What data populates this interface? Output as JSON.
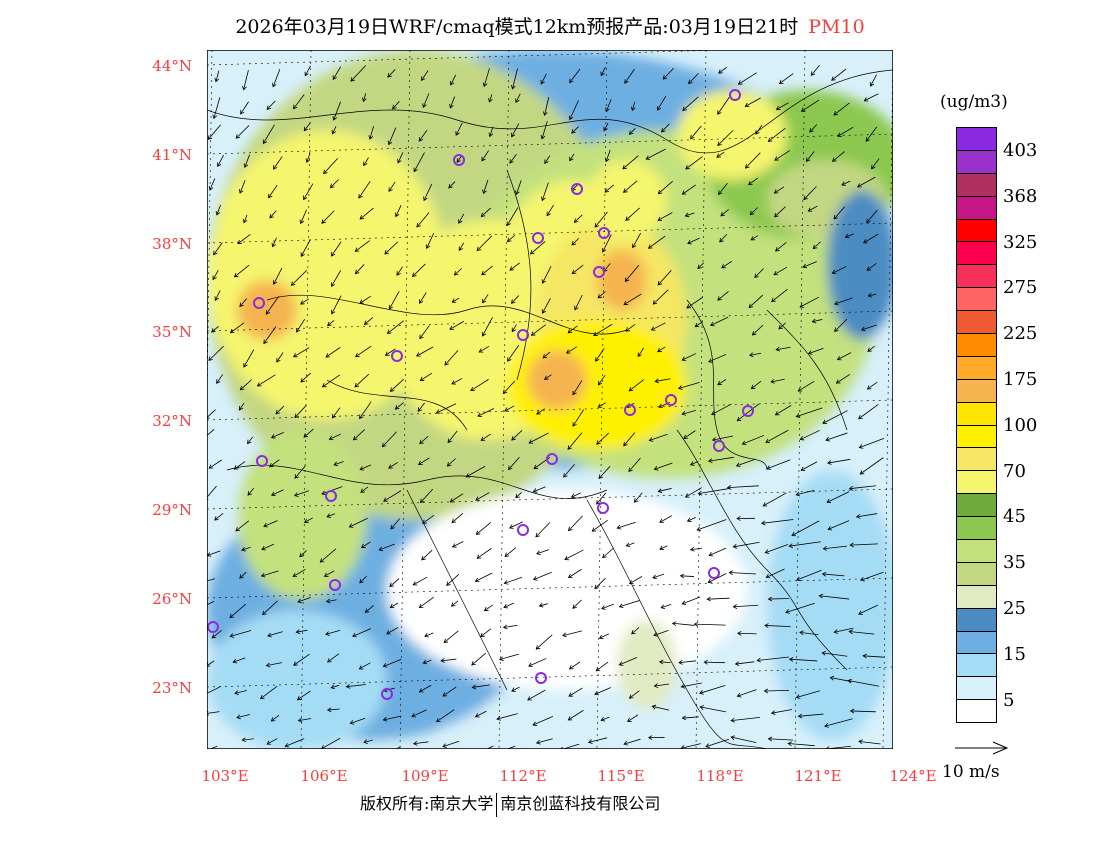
{
  "title": {
    "main": "2026年03月19日WRF/cmaq模式12km预报产品:03月19日21时",
    "pollutant": "PM10"
  },
  "lat_labels": [
    "44°N",
    "41°N",
    "38°N",
    "35°N",
    "32°N",
    "29°N",
    "26°N",
    "23°N"
  ],
  "lon_labels": [
    "103°E",
    "106°E",
    "109°E",
    "112°E",
    "115°E",
    "118°E",
    "121°E",
    "124°E"
  ],
  "colorbar": {
    "unit": "(ug/m3)",
    "colors": [
      "#8a2be2",
      "#9932cc",
      "#b03060",
      "#c71585",
      "#ff0000",
      "#ff0050",
      "#f5305a",
      "#ff6464",
      "#f05a32",
      "#ff8c00",
      "#ffaa28",
      "#f5b450",
      "#ffe600",
      "#fff000",
      "#f5e664",
      "#f5f56e",
      "#6eaa3c",
      "#8cc850",
      "#c3e17d",
      "#c3d782",
      "#e1ebc3",
      "#4b8cc3",
      "#6eafe1",
      "#a5dcf5",
      "#d7f0fa",
      "#ffffff"
    ],
    "labels": [
      "403",
      "368",
      "325",
      "275",
      "225",
      "175",
      "100",
      "70",
      "45",
      "35",
      "25",
      "15",
      "5"
    ]
  },
  "wind_reference": "10 m/s",
  "footer": {
    "left": "版权所有:南京大学",
    "right": "南京创蓝科技有限公司"
  }
}
